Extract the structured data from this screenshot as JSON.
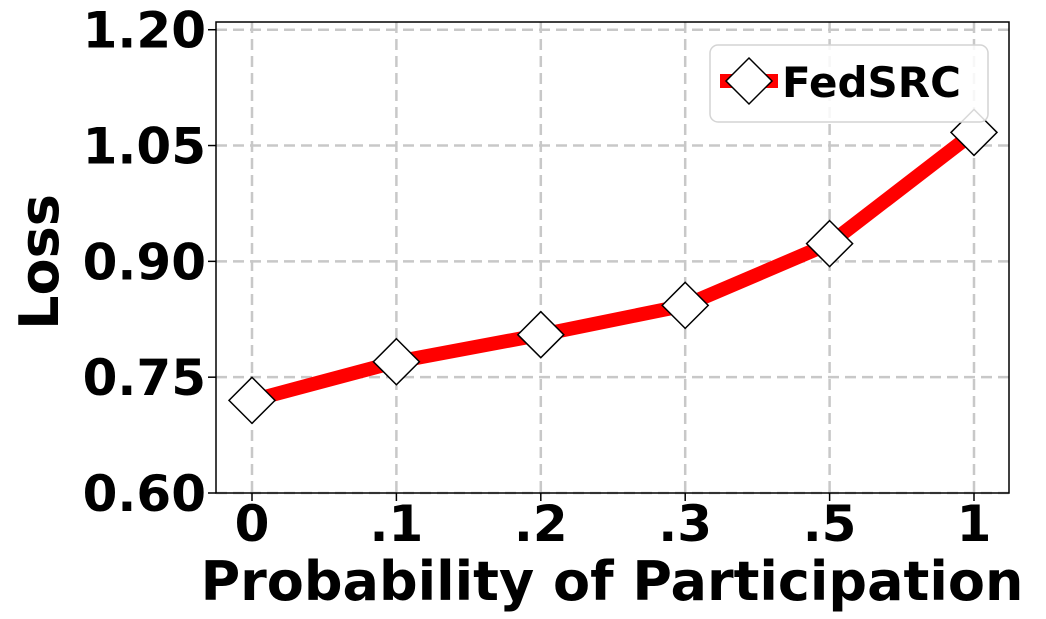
{
  "chart_data": {
    "type": "line",
    "categories": [
      "0",
      ".1",
      ".2",
      ".3",
      ".5",
      "1"
    ],
    "series": [
      {
        "name": "FedSRC",
        "values": [
          0.72,
          0.77,
          0.805,
          0.843,
          0.923,
          1.067
        ],
        "color": "#ff0000",
        "marker": "diamond"
      }
    ],
    "xlabel": "Probability of Participation",
    "ylabel": "Loss",
    "ylim": [
      0.6,
      1.21
    ],
    "yticks": [
      "0.60",
      "0.75",
      "0.90",
      "1.05",
      "1.20"
    ],
    "grid": true,
    "legend_position": "top-right"
  }
}
